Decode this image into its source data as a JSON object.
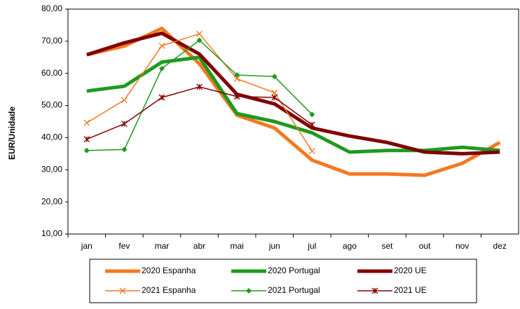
{
  "chart_data": {
    "type": "line",
    "y_label": "EUR/Unidade",
    "categories": [
      "jan",
      "fev",
      "mar",
      "abr",
      "mai",
      "jun",
      "jul",
      "ago",
      "set",
      "out",
      "nov",
      "dez"
    ],
    "series": [
      {
        "name": "2020 Espanha",
        "color": "#f47920",
        "width": 5,
        "marker": "none",
        "values": [
          65.8,
          68.5,
          74,
          63,
          47,
          43,
          33,
          28.7,
          28.7,
          28.3,
          32,
          38.5
        ]
      },
      {
        "name": "2020 Portugal",
        "color": "#1e9a1e",
        "width": 5,
        "marker": "none",
        "values": [
          54.5,
          56,
          63.5,
          65,
          47.5,
          45,
          41.5,
          35.5,
          36,
          36,
          37,
          36
        ]
      },
      {
        "name": "2020 UE",
        "color": "#800000",
        "width": 5,
        "marker": "none",
        "values": [
          65.8,
          69.5,
          72.5,
          66,
          53.5,
          50.5,
          43,
          40.5,
          38.5,
          35.5,
          35,
          35.5
        ]
      },
      {
        "name": "2021 Espanha",
        "color": "#f47920",
        "width": 1.5,
        "marker": "x",
        "values": [
          44.6,
          51.7,
          68.6,
          72.3,
          58.3,
          54,
          35.8,
          null,
          null,
          null,
          null,
          null
        ]
      },
      {
        "name": "2021 Portugal",
        "color": "#1e9a1e",
        "width": 1.5,
        "marker": "diamond",
        "values": [
          36,
          36.3,
          61.5,
          70.3,
          59.5,
          59,
          47.2,
          null,
          null,
          null,
          null,
          null
        ]
      },
      {
        "name": "2021 UE",
        "color": "#800000",
        "width": 1.5,
        "marker": "star",
        "values": [
          39.5,
          44.3,
          52.5,
          55.8,
          52.8,
          52.5,
          44,
          null,
          null,
          null,
          null,
          null
        ]
      }
    ],
    "ylim": [
      10,
      80
    ],
    "yticks": [
      {
        "value": 10,
        "label": "10,00"
      },
      {
        "value": 20,
        "label": "20,00"
      },
      {
        "value": 30,
        "label": "30,00"
      },
      {
        "value": 40,
        "label": "40,00"
      },
      {
        "value": 50,
        "label": "50,00"
      },
      {
        "value": 60,
        "label": "60,00"
      },
      {
        "value": 70,
        "label": "70,00"
      },
      {
        "value": 80,
        "label": "80,00"
      }
    ],
    "legend": "bottom"
  }
}
